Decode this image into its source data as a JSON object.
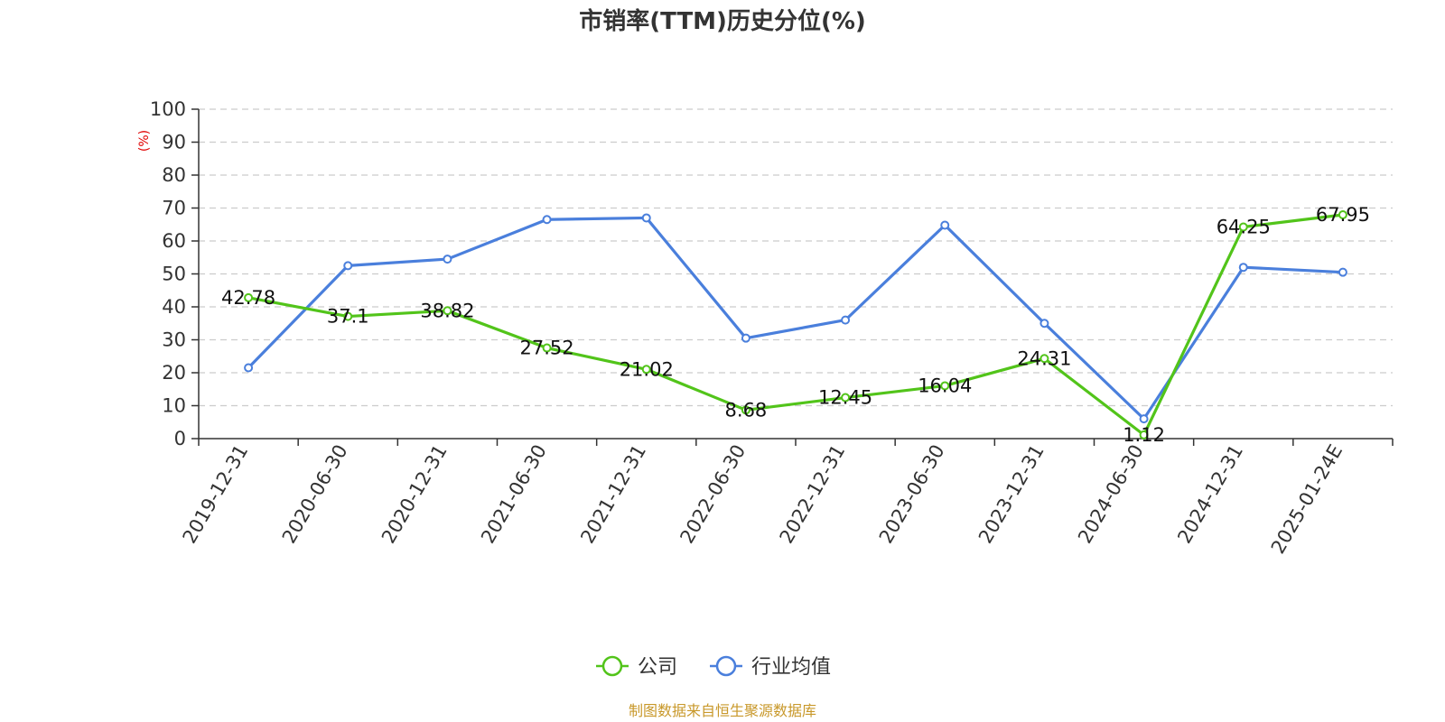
{
  "chart_data": {
    "type": "line",
    "title": "市销率(TTM)历史分位(%)",
    "ylabel": "(%)",
    "ylim": [
      0,
      100
    ],
    "yticks": [
      0,
      10,
      20,
      30,
      40,
      50,
      60,
      70,
      80,
      90,
      100
    ],
    "grid": true,
    "legend_position": "bottom-center",
    "categories": [
      "2019-12-31",
      "2020-06-30",
      "2020-12-31",
      "2021-06-30",
      "2021-12-31",
      "2022-06-30",
      "2022-12-31",
      "2023-06-30",
      "2023-12-31",
      "2024-06-30",
      "2024-12-31",
      "2025-01-24E"
    ],
    "series": [
      {
        "name": "公司",
        "color": "#52c41a",
        "values": [
          42.78,
          37.1,
          38.82,
          27.52,
          21.02,
          8.68,
          12.45,
          16.04,
          24.31,
          1.12,
          64.25,
          67.95
        ],
        "labels": [
          "42.78",
          "37.1",
          "38.82",
          "27.52",
          "21.02",
          "8.68",
          "12.45",
          "16.04",
          "24.31",
          "1.12",
          "64.25",
          "67.95"
        ]
      },
      {
        "name": "行业均值",
        "color": "#4a7fdc",
        "values": [
          21.5,
          52.5,
          54.5,
          66.5,
          67.0,
          30.5,
          36.0,
          64.8,
          35.0,
          6.0,
          52.0,
          50.5
        ]
      }
    ]
  },
  "source": "制图数据来自恒生聚源数据库",
  "colors": {
    "axis": "#333333",
    "grid": "#cccccc",
    "ylabel": "#e00000",
    "source": "#c8982a"
  }
}
